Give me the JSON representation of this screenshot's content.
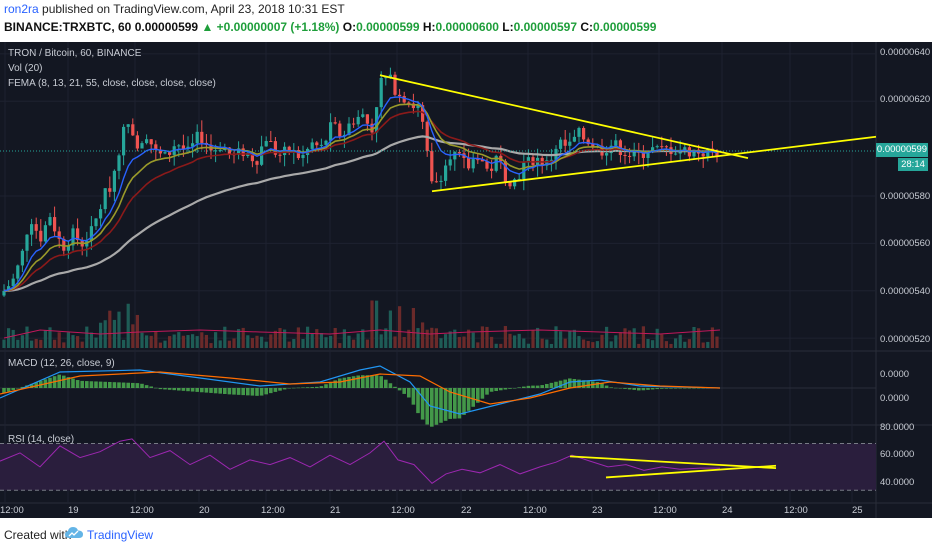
{
  "header": {
    "author": "ron2ra",
    "published_text": "published on TradingView.com, April 23, 2018 10:31 EST",
    "symbol_line": "BINANCE:TRXBTC, 60",
    "price": "0.00000599",
    "change": "▲ +0.00000007 (+1.18%)",
    "ohlc": {
      "o_label": "O:",
      "o": "0.00000599",
      "h_label": "H:",
      "h": "0.00000600",
      "l_label": "L:",
      "l": "0.00000597",
      "c_label": "C:",
      "c": "0.00000599"
    }
  },
  "legend": {
    "title": "TRON / Bitcoin, 60, BINANCE",
    "vol": "Vol (20)",
    "fema": "FEMA (8, 13, 21, 55, close, close, close, close)",
    "macd": "MACD (12, 26, close, 9)",
    "rsi": "RSI (14, close)"
  },
  "price_axis": [
    "0.00000640",
    "0.00000620",
    "0.00000580",
    "0.00000560",
    "0.00000540",
    "0.00000520"
  ],
  "price_badge": "0.00000599",
  "countdown_badge": "28:14",
  "macd_axis": [
    "0.0000",
    "0.0000"
  ],
  "rsi_axis": [
    "80.0000",
    "60.0000",
    "40.0000"
  ],
  "time_axis": [
    "12:00",
    "19",
    "12:00",
    "20",
    "12:00",
    "21",
    "12:00",
    "22",
    "12:00",
    "23",
    "12:00",
    "24",
    "12:00",
    "25"
  ],
  "footer": {
    "created_with": "Created with",
    "brand": "TradingView"
  },
  "colors": {
    "background": "#131722",
    "up": "#26a69a",
    "down": "#ef5350",
    "trendline": "#ffff00",
    "ema8": "#2962ff",
    "ema13": "#9a9a2a",
    "ema21": "#8b1a1a",
    "ema55": "#a9a9a9",
    "macd_line": "#2196f3",
    "signal_line": "#ff6d00",
    "macd_hist": "#4caf50",
    "rsi_line": "#9c27b0",
    "rsi_band": "#2a1e3d"
  },
  "chart_data": [
    {
      "type": "candlestick",
      "title": "TRON / Bitcoin, 60, BINANCE",
      "ylim": [
        5.15e-06,
        6.45e-06
      ],
      "close_path": [
        [
          0,
          5.38e-06
        ],
        [
          14,
          5.45e-06
        ],
        [
          22,
          5.55e-06
        ],
        [
          30,
          5.72e-06
        ],
        [
          40,
          5.62e-06
        ],
        [
          50,
          5.72e-06
        ],
        [
          62,
          5.58e-06
        ],
        [
          72,
          5.64e-06
        ],
        [
          82,
          5.6e-06
        ],
        [
          92,
          5.65e-06
        ],
        [
          102,
          5.78e-06
        ],
        [
          112,
          5.86e-06
        ],
        [
          120,
          6.02e-06
        ],
        [
          128,
          6.13e-06
        ],
        [
          138,
          6.02e-06
        ],
        [
          146,
          6.07e-06
        ],
        [
          156,
          5.98e-06
        ],
        [
          166,
          5.96e-06
        ],
        [
          176,
          6.03e-06
        ],
        [
          188,
          5.98e-06
        ],
        [
          200,
          6.06e-06
        ],
        [
          212,
          5.99e-06
        ],
        [
          222,
          6.02e-06
        ],
        [
          232,
          5.96e-06
        ],
        [
          244,
          5.99e-06
        ],
        [
          256,
          5.95e-06
        ],
        [
          266,
          6.05e-06
        ],
        [
          278,
          5.97e-06
        ],
        [
          290,
          5.99e-06
        ],
        [
          302,
          5.96e-06
        ],
        [
          312,
          6.02e-06
        ],
        [
          322,
          6e-06
        ],
        [
          332,
          6.1e-06
        ],
        [
          342,
          6.05e-06
        ],
        [
          352,
          6.12e-06
        ],
        [
          362,
          6.14e-06
        ],
        [
          372,
          6.08e-06
        ],
        [
          380,
          6.28e-06
        ],
        [
          388,
          6.3e-06
        ],
        [
          396,
          6.25e-06
        ],
        [
          404,
          6.22e-06
        ],
        [
          414,
          6.18e-06
        ],
        [
          420,
          6.17e-06
        ],
        [
          426,
          6e-06
        ],
        [
          432,
          5.84e-06
        ],
        [
          440,
          5.88e-06
        ],
        [
          448,
          5.99e-06
        ],
        [
          458,
          5.96e-06
        ],
        [
          468,
          5.92e-06
        ],
        [
          478,
          5.98e-06
        ],
        [
          488,
          5.9e-06
        ],
        [
          498,
          5.96e-06
        ],
        [
          506,
          5.88e-06
        ],
        [
          514,
          5.86e-06
        ],
        [
          524,
          5.93e-06
        ],
        [
          536,
          5.96e-06
        ],
        [
          548,
          5.93e-06
        ],
        [
          558,
          6.03e-06
        ],
        [
          568,
          6e-06
        ],
        [
          578,
          6.06e-06
        ],
        [
          590,
          6.03e-06
        ],
        [
          600,
          5.99e-06
        ],
        [
          612,
          6.02e-06
        ],
        [
          624,
          5.99e-06
        ],
        [
          636,
          5.96e-06
        ],
        [
          648,
          6e-06
        ],
        [
          660,
          5.99e-06
        ],
        [
          672,
          6e-06
        ],
        [
          684,
          5.99e-06
        ],
        [
          696,
          5.99e-06
        ],
        [
          708,
          5.98e-06
        ],
        [
          720,
          5.99e-06
        ]
      ],
      "trendlines": [
        {
          "from": [
            380,
            6.31e-06
          ],
          "to": [
            748,
            5.96e-06
          ]
        },
        {
          "from": [
            432,
            5.82e-06
          ],
          "to": [
            876,
            6.05e-06
          ]
        }
      ],
      "last_price": 5.99e-06
    },
    {
      "type": "line",
      "title": "MACD (12, 26, close, 9)",
      "series": [
        {
          "name": "MACD",
          "points": [
            [
              0,
              -0.5
            ],
            [
              60,
              0.8
            ],
            [
              140,
              0.9
            ],
            [
              200,
              0.5
            ],
            [
              260,
              0.1
            ],
            [
              320,
              0.3
            ],
            [
              360,
              0.9
            ],
            [
              380,
              1.1
            ],
            [
              410,
              0.3
            ],
            [
              430,
              -0.9
            ],
            [
              460,
              -1.3
            ],
            [
              500,
              -0.8
            ],
            [
              540,
              -0.3
            ],
            [
              570,
              0.3
            ],
            [
              600,
              0.4
            ],
            [
              640,
              0.1
            ],
            [
              720,
              0.0
            ]
          ]
        },
        {
          "name": "Signal",
          "points": [
            [
              0,
              -0.3
            ],
            [
              80,
              0.6
            ],
            [
              160,
              0.8
            ],
            [
              230,
              0.5
            ],
            [
              290,
              0.2
            ],
            [
              340,
              0.3
            ],
            [
              380,
              0.7
            ],
            [
              420,
              0.6
            ],
            [
              450,
              -0.2
            ],
            [
              490,
              -0.8
            ],
            [
              530,
              -0.5
            ],
            [
              570,
              -0.0
            ],
            [
              610,
              0.3
            ],
            [
              660,
              0.1
            ],
            [
              720,
              0.0
            ]
          ]
        }
      ]
    },
    {
      "type": "line",
      "title": "RSI (14, close)",
      "ylim": [
        20,
        85
      ],
      "levels": [
        70,
        30
      ],
      "series": [
        {
          "name": "RSI",
          "points": [
            [
              0,
              55
            ],
            [
              20,
              62
            ],
            [
              40,
              50
            ],
            [
              60,
              68
            ],
            [
              80,
              58
            ],
            [
              100,
              63
            ],
            [
              120,
              72
            ],
            [
              132,
              74
            ],
            [
              150,
              58
            ],
            [
              170,
              64
            ],
            [
              190,
              52
            ],
            [
              210,
              60
            ],
            [
              230,
              48
            ],
            [
              250,
              56
            ],
            [
              270,
              52
            ],
            [
              290,
              58
            ],
            [
              310,
              50
            ],
            [
              330,
              60
            ],
            [
              350,
              52
            ],
            [
              370,
              62
            ],
            [
              384,
              72
            ],
            [
              398,
              56
            ],
            [
              414,
              52
            ],
            [
              432,
              36
            ],
            [
              446,
              44
            ],
            [
              462,
              48
            ],
            [
              480,
              45
            ],
            [
              500,
              52
            ],
            [
              520,
              44
            ],
            [
              540,
              50
            ],
            [
              556,
              54
            ],
            [
              572,
              60
            ],
            [
              590,
              55
            ],
            [
              608,
              50
            ],
            [
              626,
              52
            ],
            [
              644,
              47
            ],
            [
              662,
              50
            ],
            [
              680,
              48
            ],
            [
              700,
              49
            ],
            [
              720,
              49
            ]
          ]
        }
      ],
      "trendlines": [
        {
          "from": [
            570,
            59
          ],
          "to": [
            776,
            49
          ]
        },
        {
          "from": [
            606,
            41
          ],
          "to": [
            776,
            51
          ]
        }
      ]
    }
  ]
}
